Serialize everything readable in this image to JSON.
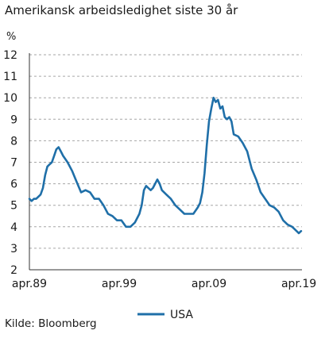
{
  "title": "Amerikansk arbeidsledighet siste 30 år",
  "source": "Kilde: Bloomberg",
  "colors": {
    "line": "#1f6fa8",
    "grid": "#a6a6a6",
    "axis": "#333333"
  },
  "chart_data": {
    "type": "line",
    "title": "Amerikansk arbeidsledighet siste 30 år",
    "unit_label": "%",
    "xlabel": "",
    "ylabel": "",
    "ylim": [
      2,
      12
    ],
    "yticks": [
      2,
      3,
      4,
      5,
      6,
      7,
      8,
      9,
      10,
      11,
      12
    ],
    "xlim": [
      1989.25,
      2019.6
    ],
    "xticks": [
      {
        "value": 1989.25,
        "label": "apr.89"
      },
      {
        "value": 1999.25,
        "label": "apr.99"
      },
      {
        "value": 2009.25,
        "label": "apr.09"
      },
      {
        "value": 2019.25,
        "label": "apr.19"
      }
    ],
    "grid": true,
    "legend": "bottom-center",
    "series": [
      {
        "name": "USA",
        "x": [
          1989.25,
          1989.5,
          1989.75,
          1990.0,
          1990.25,
          1990.5,
          1990.75,
          1991.0,
          1991.25,
          1991.5,
          1991.75,
          1992.0,
          1992.25,
          1992.5,
          1992.75,
          1993.0,
          1993.5,
          1994.0,
          1994.5,
          1995.0,
          1995.5,
          1996.0,
          1996.5,
          1997.0,
          1997.5,
          1998.0,
          1998.5,
          1999.0,
          1999.5,
          2000.0,
          2000.5,
          2001.0,
          2001.5,
          2001.75,
          2002.0,
          2002.25,
          2002.5,
          2002.75,
          2003.0,
          2003.25,
          2003.5,
          2003.75,
          2004.0,
          2004.5,
          2005.0,
          2005.5,
          2006.0,
          2006.5,
          2007.0,
          2007.5,
          2008.0,
          2008.25,
          2008.5,
          2008.75,
          2009.0,
          2009.25,
          2009.5,
          2009.75,
          2010.0,
          2010.25,
          2010.5,
          2010.75,
          2011.0,
          2011.25,
          2011.5,
          2011.75,
          2012.0,
          2012.5,
          2013.0,
          2013.5,
          2014.0,
          2014.5,
          2015.0,
          2015.5,
          2016.0,
          2016.5,
          2017.0,
          2017.5,
          2018.0,
          2018.5,
          2019.0,
          2019.25,
          2019.5
        ],
        "y": [
          5.3,
          5.2,
          5.3,
          5.3,
          5.4,
          5.5,
          5.8,
          6.4,
          6.8,
          6.9,
          7.0,
          7.3,
          7.6,
          7.7,
          7.5,
          7.3,
          7.0,
          6.6,
          6.1,
          5.6,
          5.7,
          5.6,
          5.3,
          5.3,
          5.0,
          4.6,
          4.5,
          4.3,
          4.3,
          4.0,
          4.0,
          4.2,
          4.6,
          5.0,
          5.7,
          5.9,
          5.8,
          5.7,
          5.8,
          6.0,
          6.2,
          6.0,
          5.7,
          5.5,
          5.3,
          5.0,
          4.8,
          4.6,
          4.6,
          4.6,
          4.9,
          5.1,
          5.6,
          6.5,
          7.8,
          8.9,
          9.5,
          10.0,
          9.8,
          9.9,
          9.5,
          9.6,
          9.1,
          9.0,
          9.1,
          8.9,
          8.3,
          8.2,
          7.9,
          7.5,
          6.7,
          6.2,
          5.6,
          5.3,
          5.0,
          4.9,
          4.7,
          4.3,
          4.1,
          4.0,
          3.8,
          3.7,
          3.8
        ]
      }
    ]
  }
}
